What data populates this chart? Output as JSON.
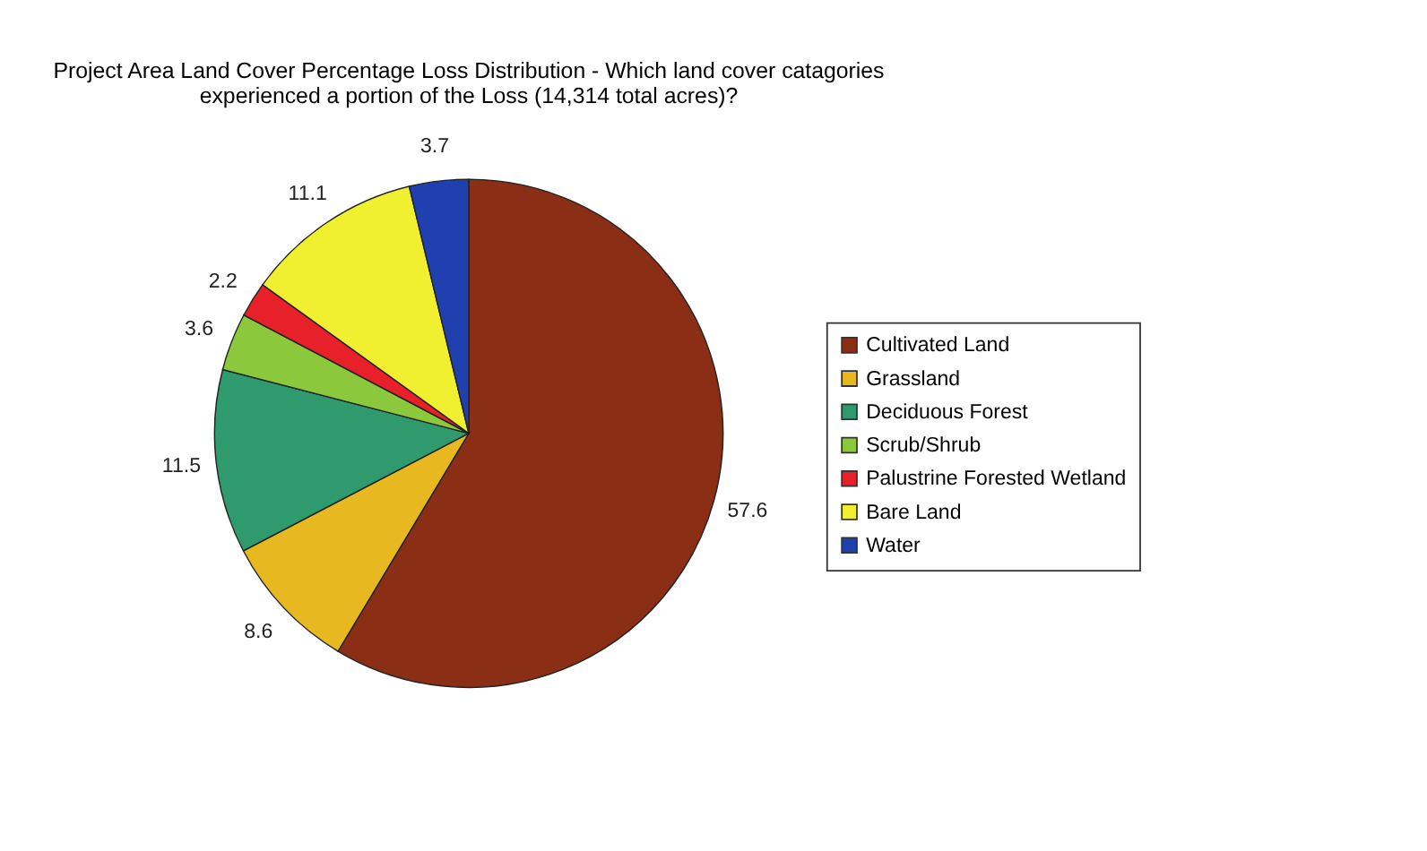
{
  "chart_data": {
    "type": "pie",
    "title": [
      "Project Area Land Cover Percentage Loss Distribution -  Which land cover catagories",
      "experienced a portion of the Loss (14,314 total acres)?"
    ],
    "categories": [
      "Cultivated Land",
      "Grassland",
      "Deciduous Forest",
      "Scrub/Shrub",
      "Palustrine Forested Wetland",
      "Bare Land",
      "Water"
    ],
    "values": [
      57.6,
      8.6,
      11.5,
      3.6,
      2.2,
      11.1,
      3.7
    ],
    "colors": [
      "#8b2e16",
      "#e8b820",
      "#2e9a6e",
      "#8cc83c",
      "#e8202a",
      "#f0f030",
      "#2040b0"
    ],
    "data_labels": true,
    "legend": "right"
  }
}
